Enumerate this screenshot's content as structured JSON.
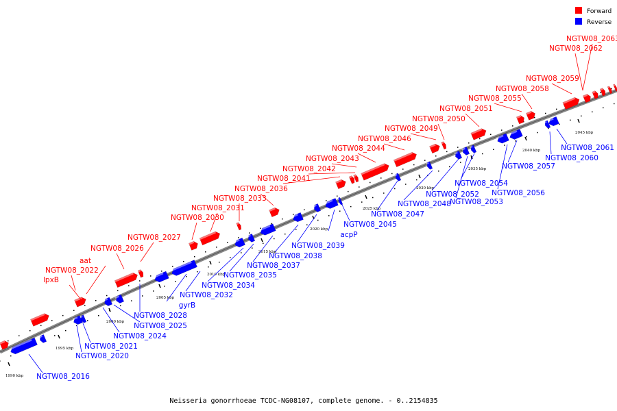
{
  "caption": "Neisseria gonorrhoeae TCDC-NG08107, complete genome. - 0..2154835",
  "legend": [
    {
      "label": "Forward",
      "color": "#ff0000"
    },
    {
      "label": "Reverse",
      "color": "#0000ff"
    }
  ],
  "colors": {
    "forward": "#ff0000",
    "reverse": "#0000ff",
    "backbone": "#888888"
  },
  "ticks": [
    {
      "label": "1990 kbp"
    },
    {
      "label": "1995 kbp"
    },
    {
      "label": "2000 kbp"
    },
    {
      "label": "2005 kbp"
    },
    {
      "label": "2010 kbp"
    },
    {
      "label": "2015 kbp"
    },
    {
      "label": "2020 kbp"
    },
    {
      "label": "2025 kbp"
    },
    {
      "label": "2030 kbp"
    },
    {
      "label": "2035 kbp"
    },
    {
      "label": "2040 kbp"
    },
    {
      "label": "2045 kbp"
    }
  ],
  "forward_labels": [
    "NGTW08_2022",
    "lpxB",
    "aat",
    "NGTW08_2026",
    "NGTW08_2027",
    "NGTW08_2030",
    "NGTW08_2031",
    "NGTW08_2033",
    "NGTW08_2036",
    "NGTW08_2041",
    "NGTW08_2042",
    "NGTW08_2043",
    "NGTW08_2044",
    "NGTW08_2046",
    "NGTW08_2049",
    "NGTW08_2050",
    "NGTW08_2051",
    "NGTW08_2055",
    "NGTW08_2058",
    "NGTW08_2059",
    "NGTW08_2062",
    "NGTW08_2063"
  ],
  "reverse_labels": [
    "NGTW08_2016",
    "NGTW08_2020",
    "NGTW08_2021",
    "NGTW08_2024",
    "NGTW08_2025",
    "NGTW08_2028",
    "gyrB",
    "NGTW08_2032",
    "NGTW08_2034",
    "NGTW08_2035",
    "NGTW08_2037",
    "NGTW08_2038",
    "NGTW08_2039",
    "acpP",
    "NGTW08_2045",
    "NGTW08_2047",
    "NGTW08_2048",
    "NGTW08_2052",
    "NGTW08_2053",
    "NGTW08_2054",
    "NGTW08_2056",
    "NGTW08_2057",
    "NGTW08_2060",
    "NGTW08_2061"
  ]
}
